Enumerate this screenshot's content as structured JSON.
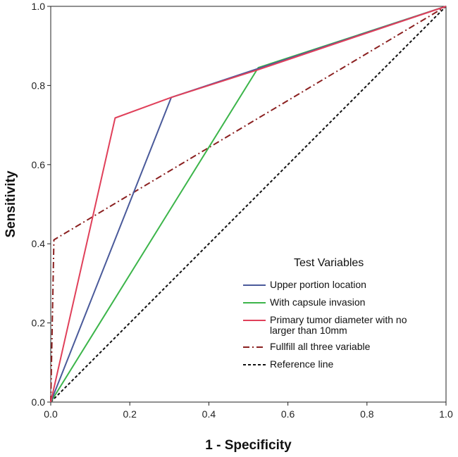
{
  "chart_data": {
    "type": "line",
    "xlabel": "1 - Specificity",
    "ylabel": "Sensitivity",
    "xlim": [
      0.0,
      1.0
    ],
    "ylim": [
      0.0,
      1.0
    ],
    "xticks": [
      "0.0",
      "0.2",
      "0.4",
      "0.6",
      "0.8",
      "1.0"
    ],
    "yticks": [
      "0.0",
      "0.2",
      "0.4",
      "0.6",
      "0.8",
      "1.0"
    ],
    "grid": false,
    "legend": {
      "title": "Test Variables",
      "placement": "bottom-right"
    },
    "series": [
      {
        "name": "Upper portion location",
        "color": "#4a5a9a",
        "dash": "solid",
        "points": [
          [
            0.0,
            0.0
          ],
          [
            0.305,
            0.77
          ],
          [
            1.0,
            1.0
          ]
        ]
      },
      {
        "name": "With capsule invasion",
        "color": "#3cb54a",
        "dash": "solid",
        "points": [
          [
            0.0,
            0.0
          ],
          [
            0.525,
            0.845
          ],
          [
            1.0,
            1.0
          ]
        ]
      },
      {
        "name_lines": [
          "Primary tumor diameter with no",
          "larger than 10mm"
        ],
        "color": "#e0405a",
        "dash": "solid",
        "points": [
          [
            0.0,
            0.0
          ],
          [
            0.163,
            0.718
          ],
          [
            0.305,
            0.77
          ],
          [
            0.525,
            0.84
          ],
          [
            1.0,
            1.0
          ]
        ]
      },
      {
        "name": "Fullfill all three variable",
        "color": "#8b2020",
        "dash": "dashdot",
        "points": [
          [
            0.0,
            0.0
          ],
          [
            0.008,
            0.41
          ],
          [
            1.0,
            1.0
          ]
        ]
      },
      {
        "name": "Reference line",
        "color": "#111111",
        "dash": "dotted",
        "points": [
          [
            0.0,
            0.0
          ],
          [
            1.0,
            1.0
          ]
        ]
      }
    ]
  }
}
